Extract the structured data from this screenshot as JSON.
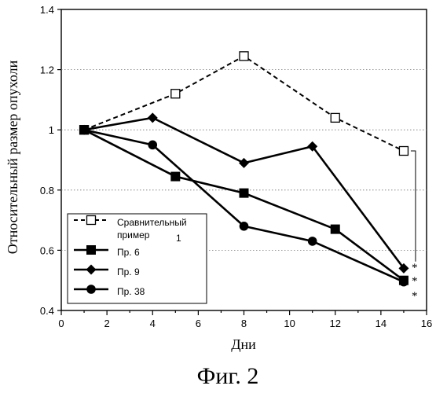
{
  "caption": "Фиг. 2",
  "chart_data": {
    "type": "line",
    "xlabel": "Дни",
    "ylabel": "Относительный размер опухоли",
    "xlim": [
      0,
      16
    ],
    "ylim": [
      0.4,
      1.4
    ],
    "x_ticks": [
      0,
      2,
      4,
      6,
      8,
      10,
      12,
      14,
      16
    ],
    "y_ticks": [
      "0.4",
      "0.6",
      "0.8",
      "1",
      "1.2",
      "1.4"
    ],
    "grid": "horizontal dotted",
    "legend_position": "bottom-left",
    "series": [
      {
        "name": "Сравнительный пример 1",
        "legend_lines": [
          "Сравнительный",
          "пример",
          "1"
        ],
        "marker": "open-square",
        "line_style": "dashed",
        "x": [
          1,
          5,
          8,
          12,
          15
        ],
        "y": [
          1.0,
          1.12,
          1.245,
          1.04,
          0.93
        ]
      },
      {
        "name": "Пр. 6",
        "marker": "filled-square",
        "line_style": "solid",
        "x": [
          1,
          5,
          8,
          12,
          15
        ],
        "y": [
          1.0,
          0.845,
          0.79,
          0.67,
          0.5
        ]
      },
      {
        "name": "Пр. 9",
        "marker": "filled-diamond",
        "line_style": "solid",
        "x": [
          1,
          4,
          8,
          11,
          15
        ],
        "y": [
          1.0,
          1.04,
          0.89,
          0.945,
          0.54
        ]
      },
      {
        "name": "Пр. 38",
        "marker": "filled-circle",
        "line_style": "solid",
        "x": [
          1,
          4,
          8,
          11,
          15
        ],
        "y": [
          1.0,
          0.95,
          0.68,
          0.63,
          0.495
        ]
      }
    ],
    "significance_marks": [
      "*",
      "*",
      "*"
    ]
  }
}
